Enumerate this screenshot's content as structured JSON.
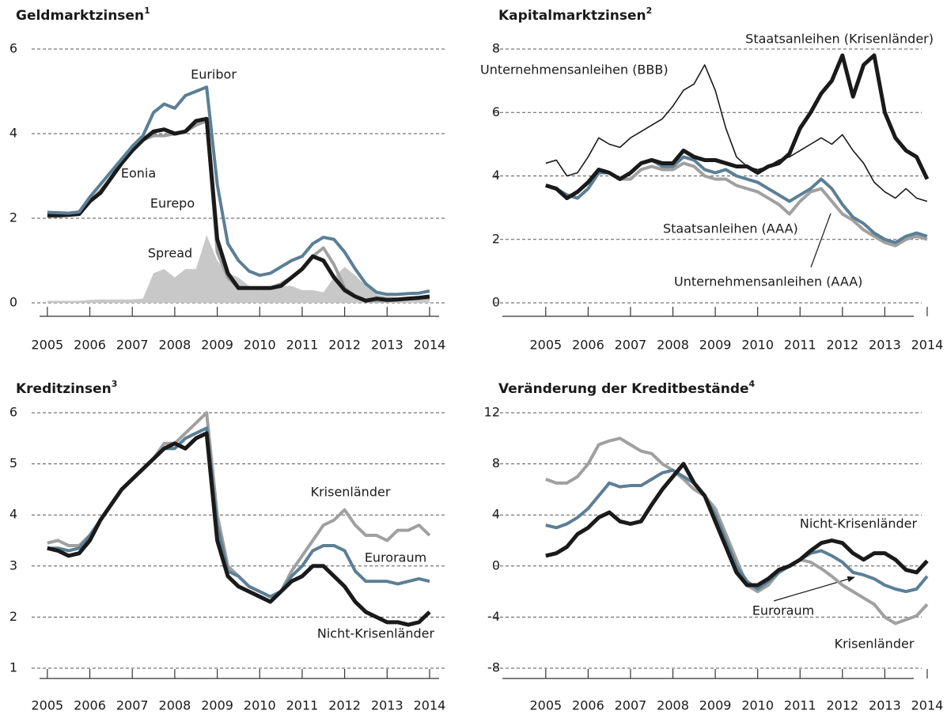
{
  "chart_data": [
    {
      "type": "line",
      "title": "Geldmarktzinsen",
      "title_note": "1",
      "x": [
        2005,
        2005.25,
        2005.5,
        2005.75,
        2006,
        2006.25,
        2006.5,
        2006.75,
        2007,
        2007.25,
        2007.5,
        2007.75,
        2008,
        2008.25,
        2008.5,
        2008.75,
        2009,
        2009.25,
        2009.5,
        2009.75,
        2010,
        2010.25,
        2010.5,
        2010.75,
        2011,
        2011.25,
        2011.5,
        2011.75,
        2012,
        2012.25,
        2012.5,
        2012.75,
        2013,
        2013.25,
        2013.5,
        2013.75,
        2014
      ],
      "xlim": [
        2004.63,
        2014.41
      ],
      "xticks": [
        2005,
        2006,
        2007,
        2008,
        2009,
        2010,
        2011,
        2012,
        2013,
        2014
      ],
      "ylim": [
        0,
        6
      ],
      "yticks": [
        0,
        2,
        4,
        6
      ],
      "grid": true,
      "series": [
        {
          "name": "Spread",
          "kind": "area",
          "color": "#c8c8c8",
          "values": [
            0.05,
            0.05,
            0.05,
            0.05,
            0.07,
            0.08,
            0.08,
            0.08,
            0.08,
            0.1,
            0.7,
            0.8,
            0.6,
            0.8,
            0.8,
            1.6,
            1.0,
            0.7,
            0.6,
            0.4,
            0.3,
            0.35,
            0.4,
            0.4,
            0.3,
            0.3,
            0.25,
            0.6,
            0.85,
            0.65,
            0.4,
            0.2,
            0.15,
            0.13,
            0.12,
            0.13,
            0.15
          ]
        },
        {
          "name": "Eurepo",
          "color": "#a0a0a0",
          "values": [
            2.05,
            2.05,
            2.07,
            2.1,
            2.4,
            2.65,
            2.95,
            3.3,
            3.6,
            3.85,
            3.95,
            3.95,
            4.0,
            4.05,
            4.2,
            4.3,
            1.2,
            0.6,
            0.35,
            0.35,
            0.35,
            0.35,
            0.45,
            0.6,
            0.8,
            1.1,
            1.3,
            0.9,
            0.35,
            0.15,
            0.05,
            0.05,
            0.05,
            0.07,
            0.1,
            0.1,
            0.12
          ]
        },
        {
          "name": "Eonia",
          "color": "#1a1a1a",
          "values": [
            2.07,
            2.07,
            2.08,
            2.1,
            2.4,
            2.6,
            2.95,
            3.3,
            3.6,
            3.85,
            4.05,
            4.1,
            4.0,
            4.05,
            4.3,
            4.35,
            1.5,
            0.7,
            0.35,
            0.35,
            0.35,
            0.35,
            0.4,
            0.6,
            0.8,
            1.1,
            1.0,
            0.6,
            0.3,
            0.15,
            0.05,
            0.1,
            0.07,
            0.08,
            0.1,
            0.12,
            0.15
          ]
        },
        {
          "name": "Euribor",
          "color": "#5b7f95",
          "values": [
            2.14,
            2.13,
            2.12,
            2.15,
            2.5,
            2.8,
            3.1,
            3.4,
            3.7,
            3.95,
            4.5,
            4.7,
            4.6,
            4.9,
            5.0,
            5.1,
            2.8,
            1.4,
            1.0,
            0.75,
            0.65,
            0.7,
            0.85,
            1.0,
            1.1,
            1.4,
            1.55,
            1.5,
            1.2,
            0.8,
            0.45,
            0.25,
            0.2,
            0.2,
            0.22,
            0.23,
            0.28
          ]
        }
      ],
      "annotations": [
        "Euribor",
        "Eonia",
        "Eurepo",
        "Spread"
      ]
    },
    {
      "type": "line",
      "title": "Kapitalmarktzinsen",
      "title_note": "2",
      "x": [
        2005,
        2005.25,
        2005.5,
        2005.75,
        2006,
        2006.25,
        2006.5,
        2006.75,
        2007,
        2007.25,
        2007.5,
        2007.75,
        2008,
        2008.25,
        2008.5,
        2008.75,
        2009,
        2009.25,
        2009.5,
        2009.75,
        2010,
        2010.25,
        2010.5,
        2010.75,
        2011,
        2011.25,
        2011.5,
        2011.75,
        2012,
        2012.25,
        2012.5,
        2012.75,
        2013,
        2013.25,
        2013.5,
        2013.75,
        2014
      ],
      "xlim": [
        2004.35,
        2014.15
      ],
      "xticks": [
        2005,
        2006,
        2007,
        2008,
        2009,
        2010,
        2011,
        2012,
        2013,
        2014
      ],
      "ylim": [
        0,
        8
      ],
      "yticks": [
        0,
        2,
        4,
        6,
        8
      ],
      "grid": true,
      "series": [
        {
          "name": "Unternehmensanleihen (AAA)",
          "color": "#a0a0a0",
          "values": [
            3.7,
            3.6,
            3.4,
            3.3,
            3.6,
            4.1,
            4.1,
            3.9,
            3.9,
            4.2,
            4.3,
            4.2,
            4.2,
            4.4,
            4.3,
            4.0,
            3.9,
            3.9,
            3.7,
            3.6,
            3.5,
            3.3,
            3.1,
            2.8,
            3.2,
            3.5,
            3.6,
            3.2,
            2.8,
            2.6,
            2.3,
            2.1,
            1.9,
            1.8,
            2.0,
            2.1,
            2.0
          ]
        },
        {
          "name": "Staatsanleihen (AAA)",
          "color": "#5b7f95",
          "values": [
            3.7,
            3.6,
            3.4,
            3.3,
            3.6,
            4.1,
            4.1,
            3.9,
            4.1,
            4.4,
            4.5,
            4.3,
            4.3,
            4.6,
            4.5,
            4.2,
            4.1,
            4.2,
            4.0,
            3.9,
            3.8,
            3.6,
            3.4,
            3.2,
            3.4,
            3.6,
            3.9,
            3.6,
            3.1,
            2.7,
            2.5,
            2.2,
            2.0,
            1.9,
            2.1,
            2.2,
            2.1
          ]
        },
        {
          "name": "Unternehmensanleihen (BBB)",
          "color": "#1a1a1a",
          "thin": true,
          "values": [
            4.4,
            4.5,
            4.0,
            4.1,
            4.6,
            5.2,
            5.0,
            4.9,
            5.2,
            5.4,
            5.6,
            5.8,
            6.2,
            6.7,
            6.9,
            7.5,
            6.7,
            5.5,
            4.6,
            4.3,
            4.2,
            4.3,
            4.5,
            4.6,
            4.8,
            5.0,
            5.2,
            5.0,
            5.3,
            4.8,
            4.4,
            3.8,
            3.5,
            3.3,
            3.6,
            3.3,
            3.2
          ]
        },
        {
          "name": "Staatsanleihen (Krisenländer)",
          "color": "#1a1a1a",
          "values": [
            3.7,
            3.6,
            3.3,
            3.5,
            3.8,
            4.2,
            4.1,
            3.9,
            4.1,
            4.4,
            4.5,
            4.4,
            4.4,
            4.8,
            4.6,
            4.5,
            4.5,
            4.4,
            4.3,
            4.3,
            4.1,
            4.3,
            4.4,
            4.7,
            5.5,
            6.0,
            6.6,
            7.0,
            7.8,
            6.5,
            7.5,
            7.8,
            6.0,
            5.2,
            4.8,
            4.6,
            3.9
          ]
        }
      ],
      "annotations": [
        "Staatsanleihen (Krisenländer)",
        "Unternehmensanleihen (BBB)",
        "Staatsanleihen (AAA)",
        "Unternehmensanleihen (AAA)"
      ]
    },
    {
      "type": "line",
      "title": "Kreditzinsen",
      "title_note": "3",
      "x": [
        2005,
        2005.25,
        2005.5,
        2005.75,
        2006,
        2006.25,
        2006.5,
        2006.75,
        2007,
        2007.25,
        2007.5,
        2007.75,
        2008,
        2008.25,
        2008.5,
        2008.75,
        2009,
        2009.25,
        2009.5,
        2009.75,
        2010,
        2010.25,
        2010.5,
        2010.75,
        2011,
        2011.25,
        2011.5,
        2011.75,
        2012,
        2012.25,
        2012.5,
        2012.75,
        2013,
        2013.25,
        2013.5,
        2013.75,
        2014
      ],
      "xlim": [
        2004.63,
        2014.41
      ],
      "xticks": [
        2005,
        2006,
        2007,
        2008,
        2009,
        2010,
        2011,
        2012,
        2013,
        2014
      ],
      "ylim": [
        1,
        6
      ],
      "yticks": [
        1,
        2,
        3,
        4,
        5,
        6
      ],
      "grid": true,
      "series": [
        {
          "name": "Krisenländer",
          "color": "#a0a0a0",
          "values": [
            3.45,
            3.5,
            3.4,
            3.4,
            3.6,
            3.9,
            4.2,
            4.5,
            4.7,
            4.9,
            5.1,
            5.4,
            5.4,
            5.6,
            5.8,
            6.0,
            4.0,
            3.0,
            2.8,
            2.6,
            2.5,
            2.4,
            2.5,
            2.9,
            3.2,
            3.5,
            3.8,
            3.9,
            4.1,
            3.8,
            3.6,
            3.6,
            3.5,
            3.7,
            3.7,
            3.8,
            3.6
          ]
        },
        {
          "name": "Euroraum",
          "color": "#5b7f95",
          "values": [
            3.35,
            3.35,
            3.3,
            3.35,
            3.6,
            3.9,
            4.2,
            4.5,
            4.7,
            4.9,
            5.1,
            5.3,
            5.3,
            5.5,
            5.6,
            5.7,
            3.8,
            2.9,
            2.8,
            2.6,
            2.5,
            2.4,
            2.5,
            2.8,
            3.0,
            3.3,
            3.4,
            3.4,
            3.3,
            2.9,
            2.7,
            2.7,
            2.7,
            2.65,
            2.7,
            2.75,
            2.7
          ]
        },
        {
          "name": "Nicht-Krisenländer",
          "color": "#1a1a1a",
          "values": [
            3.35,
            3.3,
            3.2,
            3.25,
            3.5,
            3.9,
            4.2,
            4.5,
            4.7,
            4.9,
            5.1,
            5.3,
            5.4,
            5.3,
            5.5,
            5.6,
            3.5,
            2.8,
            2.6,
            2.5,
            2.4,
            2.3,
            2.5,
            2.7,
            2.8,
            3.0,
            3.0,
            2.8,
            2.6,
            2.3,
            2.1,
            2.0,
            1.9,
            1.9,
            1.85,
            1.9,
            2.1
          ]
        }
      ],
      "annotations": [
        "Krisenländer",
        "Euroraum",
        "Nicht-Krisenländer"
      ]
    },
    {
      "type": "line",
      "title": "Veränderung der Kreditbestände",
      "title_note": "4",
      "x": [
        2005,
        2005.25,
        2005.5,
        2005.75,
        2006,
        2006.25,
        2006.5,
        2006.75,
        2007,
        2007.25,
        2007.5,
        2007.75,
        2008,
        2008.25,
        2008.5,
        2008.75,
        2009,
        2009.25,
        2009.5,
        2009.75,
        2010,
        2010.25,
        2010.5,
        2010.75,
        2011,
        2011.25,
        2011.5,
        2011.75,
        2012,
        2012.25,
        2012.5,
        2012.75,
        2013,
        2013.25,
        2013.5,
        2013.75,
        2014
      ],
      "xlim": [
        2004.35,
        2014.15
      ],
      "xticks": [
        2005,
        2006,
        2007,
        2008,
        2009,
        2010,
        2011,
        2012,
        2013,
        2014
      ],
      "ylim": [
        -8,
        12
      ],
      "yticks": [
        -8,
        -4,
        0,
        4,
        8,
        12
      ],
      "grid": true,
      "series": [
        {
          "name": "Krisenländer",
          "color": "#a0a0a0",
          "values": [
            6.8,
            6.5,
            6.5,
            7.0,
            8.0,
            9.5,
            9.8,
            10.0,
            9.5,
            9.0,
            8.8,
            8.0,
            7.5,
            6.8,
            6.0,
            5.5,
            4.5,
            2.5,
            0.5,
            -1.5,
            -2.0,
            -1.5,
            -0.5,
            0.0,
            0.5,
            0.3,
            -0.2,
            -0.8,
            -1.5,
            -2.0,
            -2.5,
            -3.0,
            -4.0,
            -4.5,
            -4.2,
            -3.9,
            -3.0
          ]
        },
        {
          "name": "Euroraum",
          "color": "#5b7f95",
          "values": [
            3.2,
            3.0,
            3.3,
            3.8,
            4.5,
            5.5,
            6.5,
            6.2,
            6.3,
            6.3,
            6.8,
            7.3,
            7.5,
            7.0,
            6.5,
            5.5,
            4.0,
            2.0,
            0.0,
            -1.2,
            -1.8,
            -1.2,
            -0.5,
            0.0,
            0.5,
            1.0,
            1.2,
            0.8,
            0.3,
            -0.5,
            -0.7,
            -1.0,
            -1.5,
            -1.8,
            -2.0,
            -1.8,
            -0.8
          ]
        },
        {
          "name": "Nicht-Krisenländer",
          "color": "#1a1a1a",
          "values": [
            0.8,
            1.0,
            1.5,
            2.5,
            3.0,
            3.8,
            4.2,
            3.5,
            3.3,
            3.5,
            4.8,
            6.0,
            7.0,
            8.0,
            6.5,
            5.5,
            3.5,
            1.5,
            -0.5,
            -1.5,
            -1.5,
            -1.0,
            -0.3,
            0.0,
            0.5,
            1.2,
            1.8,
            2.0,
            1.8,
            1.0,
            0.5,
            1.0,
            1.0,
            0.5,
            -0.3,
            -0.5,
            0.4
          ]
        }
      ],
      "annotations": [
        "Nicht-Krisenländer",
        "Euroraum",
        "Krisenländer"
      ]
    }
  ]
}
